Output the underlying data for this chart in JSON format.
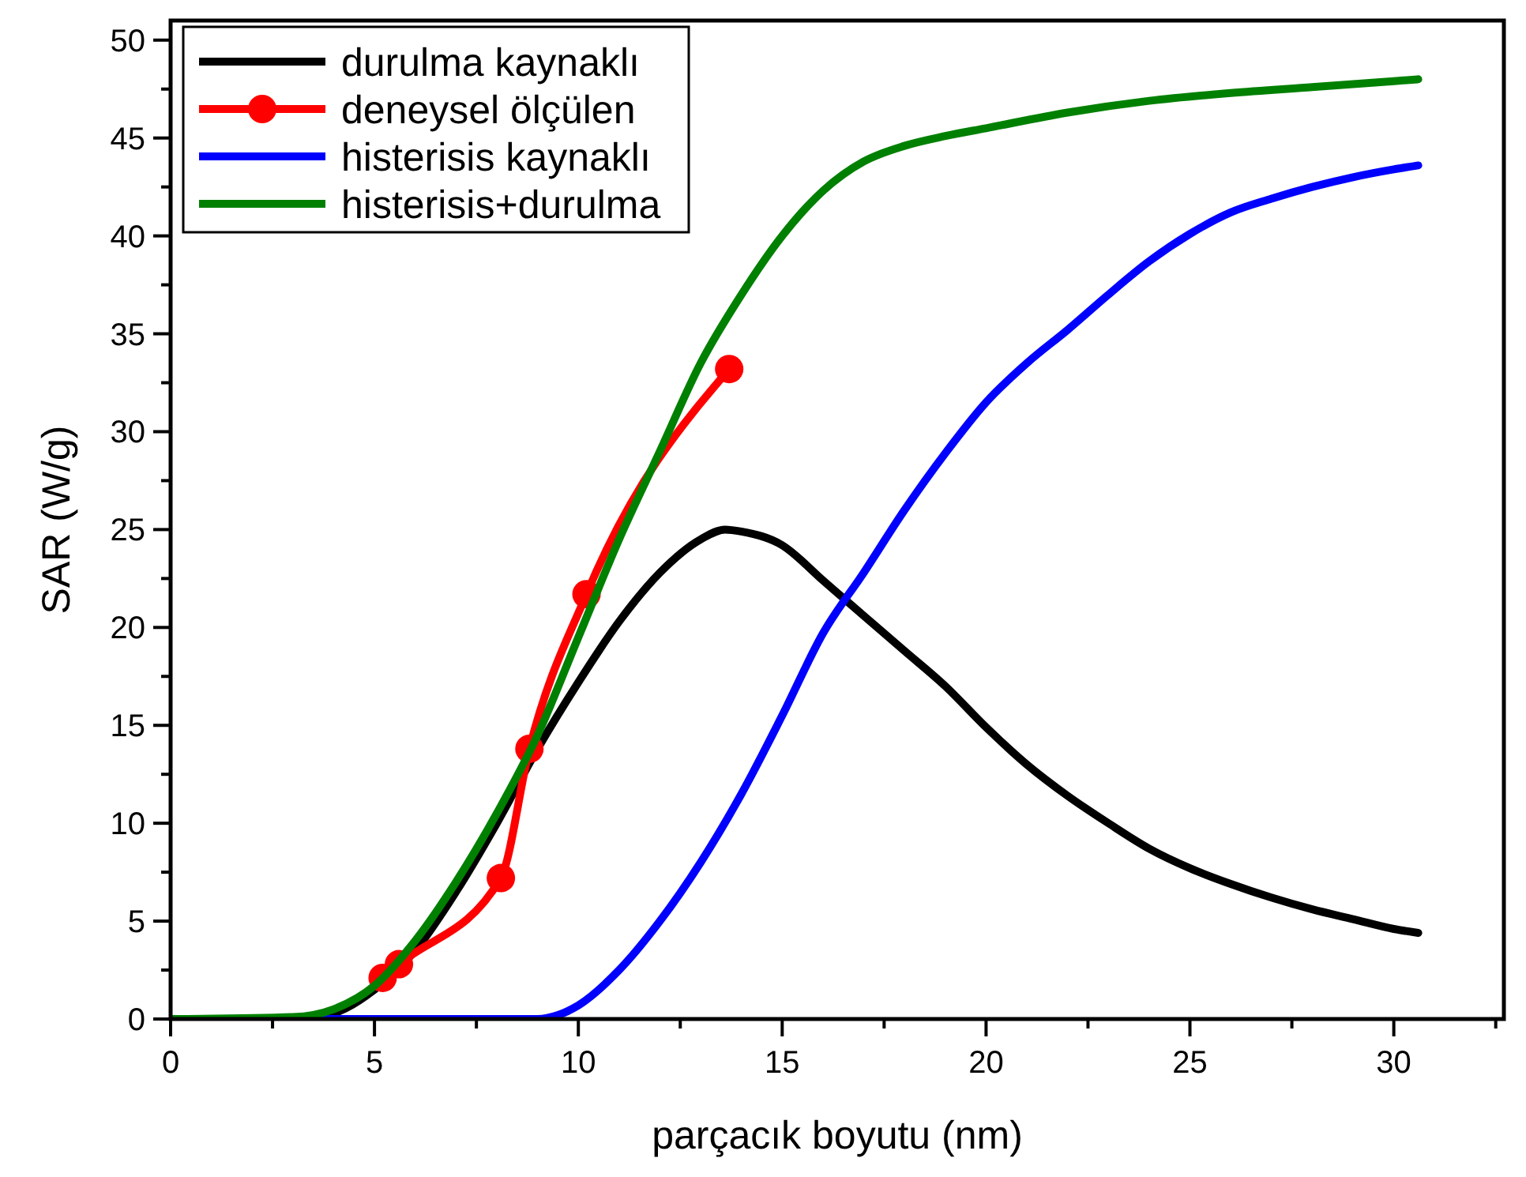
{
  "chart_data": {
    "type": "line",
    "xlabel": "parçacık boyutu (nm)",
    "ylabel": "SAR (W/g)",
    "xlim": [
      0,
      32.7
    ],
    "ylim": [
      0,
      51
    ],
    "xticks": [
      0,
      {
        "value": 2.5,
        "label": null
      },
      5,
      {
        "value": 7.5,
        "label": null
      },
      10,
      {
        "value": 12.5,
        "label": null
      },
      15,
      {
        "value": 17.5,
        "label": null
      },
      20,
      {
        "value": 22.5,
        "label": null
      },
      25,
      {
        "value": 27.5,
        "label": null
      },
      30,
      {
        "value": 32.5,
        "label": null
      }
    ],
    "yticks": [
      0,
      {
        "value": 2.5,
        "label": null
      },
      5,
      {
        "value": 7.5,
        "label": null
      },
      10,
      {
        "value": 12.5,
        "label": null
      },
      15,
      {
        "value": 17.5,
        "label": null
      },
      20,
      {
        "value": 22.5,
        "label": null
      },
      25,
      {
        "value": 27.5,
        "label": null
      },
      30,
      {
        "value": 32.5,
        "label": null
      },
      35,
      {
        "value": 37.5,
        "label": null
      },
      40,
      {
        "value": 42.5,
        "label": null
      },
      45,
      {
        "value": 47.5,
        "label": null
      },
      50
    ],
    "grid": false,
    "legend": "top left",
    "line_style": "solid",
    "series": [
      {
        "name": "durulma kaynaklı",
        "color": "#000000",
        "marker": "none",
        "x": [
          0,
          3,
          4,
          5,
          6,
          7,
          8,
          9,
          10,
          11,
          12,
          13,
          13.6,
          14,
          15,
          16,
          17,
          18,
          19,
          20,
          21,
          22,
          23,
          24,
          25,
          26,
          27,
          28,
          29,
          30,
          30.6
        ],
        "values": [
          0,
          0,
          0.3,
          1.5,
          3.5,
          6.5,
          10,
          13.8,
          17.2,
          20.3,
          22.8,
          24.5,
          25,
          24.9,
          24.2,
          22.4,
          20.6,
          18.8,
          17,
          14.9,
          13,
          11.4,
          10,
          8.7,
          7.7,
          6.9,
          6.2,
          5.6,
          5.1,
          4.6,
          4.4
        ]
      },
      {
        "name": "deneysel ölçülen",
        "color": "#ff0000",
        "marker": "circle",
        "x": [
          5.2,
          5.6,
          8.1,
          8.8,
          10.2,
          13.7
        ],
        "values": [
          2.1,
          2.8,
          7.2,
          13.8,
          21.7,
          33.2
        ]
      },
      {
        "name": "histerisis kaynaklı",
        "color": "#0000ff",
        "marker": "none",
        "x": [
          0,
          8,
          9,
          9.5,
          10,
          11,
          12,
          13,
          14,
          15,
          16,
          17,
          18,
          19,
          20,
          21,
          22,
          23,
          24,
          25,
          26,
          27,
          28,
          29,
          30,
          30.6
        ],
        "values": [
          0,
          0,
          0,
          0.2,
          0.7,
          2.5,
          5,
          8,
          11.5,
          15.5,
          19.7,
          22.8,
          26,
          28.9,
          31.5,
          33.5,
          35.2,
          37,
          38.7,
          40.1,
          41.2,
          41.9,
          42.5,
          43,
          43.4,
          43.6
        ]
      },
      {
        "name": "histerisis+durulma",
        "color": "#008000",
        "marker": "none",
        "x": [
          0,
          3,
          4,
          5,
          6,
          7,
          8,
          9,
          10,
          11,
          12,
          13,
          14,
          15,
          16,
          17,
          18,
          19,
          20,
          22,
          24,
          26,
          28,
          30,
          30.6
        ],
        "values": [
          0,
          0.1,
          0.5,
          1.7,
          4,
          7,
          10.5,
          14.5,
          19.5,
          24.5,
          29,
          33.5,
          37,
          40,
          42.3,
          43.8,
          44.6,
          45.1,
          45.5,
          46.3,
          46.9,
          47.3,
          47.6,
          47.9,
          48
        ]
      }
    ]
  }
}
